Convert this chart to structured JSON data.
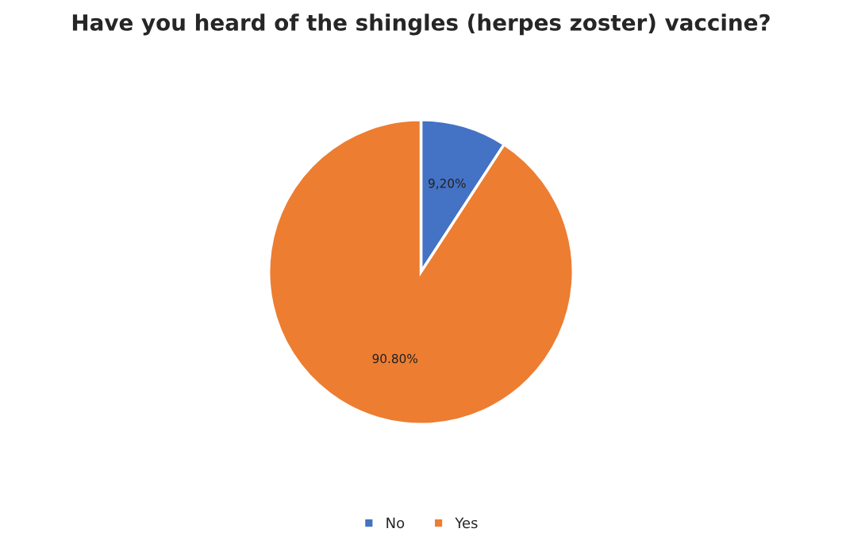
{
  "chart_data": {
    "type": "pie",
    "title": "Have you heard of the shingles (herpes zoster) vaccine?",
    "categories": [
      "No",
      "Yes"
    ],
    "values": [
      9.2,
      90.8
    ],
    "colors": [
      "#4472c4",
      "#ed7d31"
    ],
    "value_labels": [
      "9,20%",
      "90.80%"
    ],
    "legend": "bottom"
  }
}
